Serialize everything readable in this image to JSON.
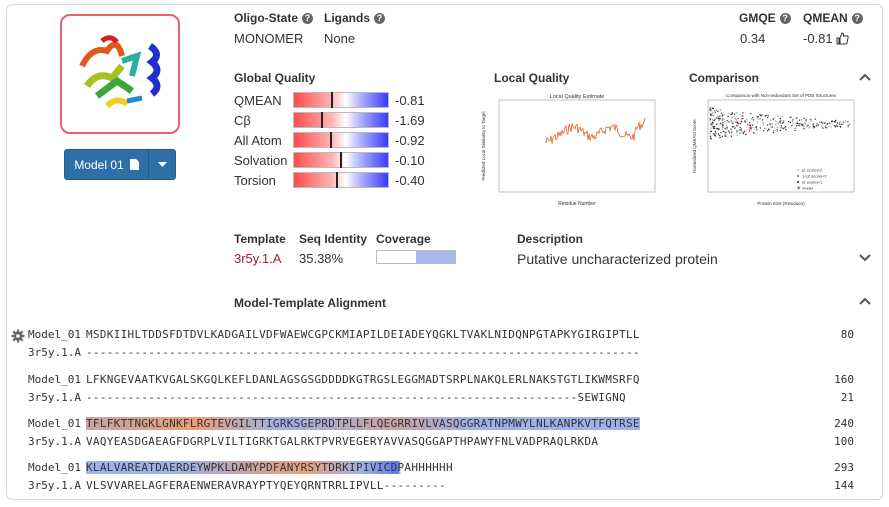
{
  "model_button": {
    "label": "Model 01"
  },
  "oligo_state": {
    "header": "Oligo-State",
    "value": "MONOMER"
  },
  "ligands": {
    "header": "Ligands",
    "value": "None"
  },
  "gmqe": {
    "header": "GMQE",
    "value": "0.34"
  },
  "qmean": {
    "header": "QMEAN",
    "value": "-0.81"
  },
  "global_quality": {
    "header": "Global Quality",
    "rows": [
      {
        "label": "QMEAN",
        "value": "-0.81",
        "z": -0.81
      },
      {
        "label": "Cβ",
        "value": "-1.69",
        "z": -1.69
      },
      {
        "label": "All Atom",
        "value": "-0.92",
        "z": -0.92
      },
      {
        "label": "Solvation",
        "value": "-0.10",
        "z": -0.1
      },
      {
        "label": "Torsion",
        "value": "-0.40",
        "z": -0.4
      }
    ]
  },
  "local_quality": {
    "header": "Local Quality",
    "chart_title": "Local Quality Estimate",
    "xlabel": "Residue Number",
    "ylabel": "Predicted Local Similarity to Target"
  },
  "comparison": {
    "header": "Comparison",
    "chart_title": "Comparison with Non-redundant Set of PDB Structures",
    "xlabel": "Protein Size (Residues)",
    "ylabel": "Normalized QMEAN Score",
    "legend": [
      "|Z-score|<2",
      "1<|Z-score|<2",
      "|Z-score|<1",
      "model"
    ]
  },
  "template": {
    "header": "Template",
    "value": "3r5y.1.A"
  },
  "seq_identity": {
    "header": "Seq Identity",
    "value": "35.38%"
  },
  "coverage": {
    "header": "Coverage",
    "start_fraction": 0.5,
    "end_fraction": 1.0
  },
  "description": {
    "header": "Description",
    "value": "Putative uncharacterized protein"
  },
  "alignment": {
    "header": "Model-Template Alignment",
    "blocks": [
      {
        "model_name": "Model_01",
        "model_seq": "MSDKIIHLTDDSFDTDVLKADGAILVDFWAEWCGPCKMIAPILDEIADEYQGKLTVAKLNIDQNPGTAPKYGIRGIPTLL",
        "model_end": "80",
        "tmpl_name": "3r5y.1.A",
        "tmpl_seq": "--------------------------------------------------------------------------------",
        "tmpl_end": ""
      },
      {
        "model_name": "Model_01",
        "model_seq": "LFKNGEVAATKVGALSKGQLKEFLDANLAGSGSGDDDDKGTRGSLEGGMADTSRPLNAKQLERLNAKSTGTLIKWMSRFQ",
        "model_end": "160",
        "tmpl_name": "3r5y.1.A",
        "tmpl_seq": "-----------------------------------------------------------------------SEWIGNQ",
        "tmpl_end": "21"
      },
      {
        "model_name": "Model_01",
        "model_seq": "TFLFKTTNGKLGNKFLRGTEVGILTTIGRKSGEPRDTPLLFLQEGRRIVLVASQGGRATNPMWYLNLKANPKVTFQTRSE",
        "model_end": "240",
        "tmpl_name": "3r5y.1.A",
        "tmpl_seq": "VAQYEASDGAEAGFDGRPLVILTIGRKTGALRKTPVRVEGERYAVVASQGGAPTHPAWYFNLVADPRAQLRKDA",
        "tmpl_end": "100"
      },
      {
        "model_name": "Model_01",
        "model_seq": "KLALVAREATDAERDEYWPKLDAMYPDFANYRSYTDRKIPIVICDPAHHHHHH",
        "model_end": "293",
        "tmpl_name": "3r5y.1.A",
        "tmpl_seq": "VLSVVARELAGFERAENWERAVRAYPTYQEYQRNTRRLIPVLL---------",
        "tmpl_end": "144"
      }
    ]
  }
}
